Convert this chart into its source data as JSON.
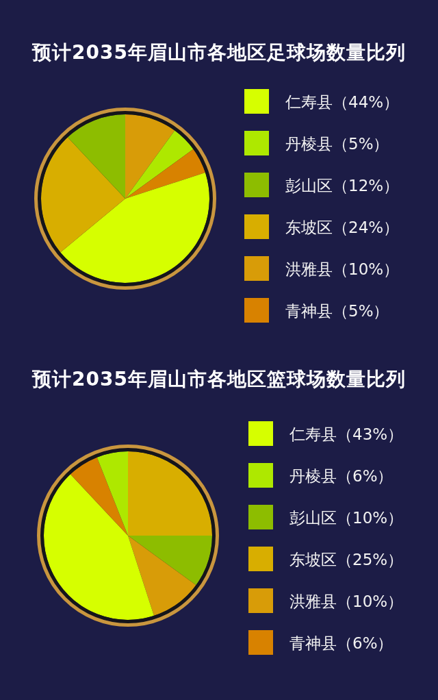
{
  "chart_data": [
    {
      "type": "pie",
      "title": "预计2035年眉山市各地区足球场数量比列",
      "categories": [
        "仁寿县（44%）",
        "丹棱县（5%）",
        "彭山区（12%）",
        "东坡区（24%）",
        "洪雅县（10%）",
        "青神县（5%）"
      ],
      "values": [
        44,
        5,
        12,
        24,
        10,
        5
      ],
      "colors": [
        "#d6ff00",
        "#aee800",
        "#8dbd00",
        "#d8ae00",
        "#d89c08",
        "#d88200"
      ],
      "legend": "right"
    },
    {
      "type": "pie",
      "title": "预计2035年眉山市各地区篮球场数量比列",
      "categories": [
        "仁寿县（43%）",
        "丹棱县（6%）",
        "彭山区（10%）",
        "东坡区（25%）",
        "洪雅县（10%）",
        "青神县（6%）"
      ],
      "values": [
        43,
        6,
        10,
        25,
        10,
        6
      ],
      "colors": [
        "#d6ff00",
        "#aee800",
        "#8dbd00",
        "#d8ae00",
        "#d89c08",
        "#d88200"
      ],
      "legend": "right"
    }
  ]
}
